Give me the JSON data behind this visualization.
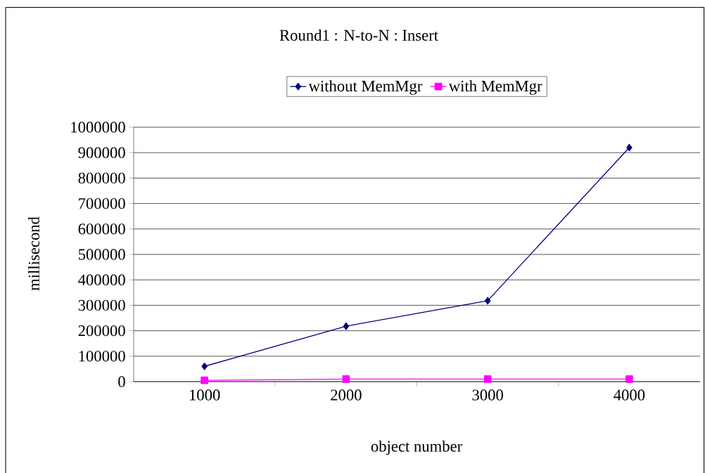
{
  "chart_data": {
    "type": "line",
    "title": "Round1 : N-to-N : Insert",
    "xlabel": "object number",
    "ylabel": "millisecond",
    "categories": [
      "1000",
      "2000",
      "3000",
      "4000"
    ],
    "series": [
      {
        "name": "without MemMgr",
        "color": "#000080",
        "marker": "diamond",
        "values": [
          60000,
          218000,
          318000,
          920000
        ]
      },
      {
        "name": "with MemMgr",
        "color": "#ff00ff",
        "marker": "square",
        "values": [
          5000,
          10000,
          10000,
          10000
        ]
      }
    ],
    "ylim": [
      0,
      1000000
    ],
    "yticks": [
      0,
      100000,
      200000,
      300000,
      400000,
      500000,
      600000,
      700000,
      800000,
      900000,
      1000000
    ],
    "grid": "y",
    "legend": "top",
    "line_style": "solid"
  }
}
